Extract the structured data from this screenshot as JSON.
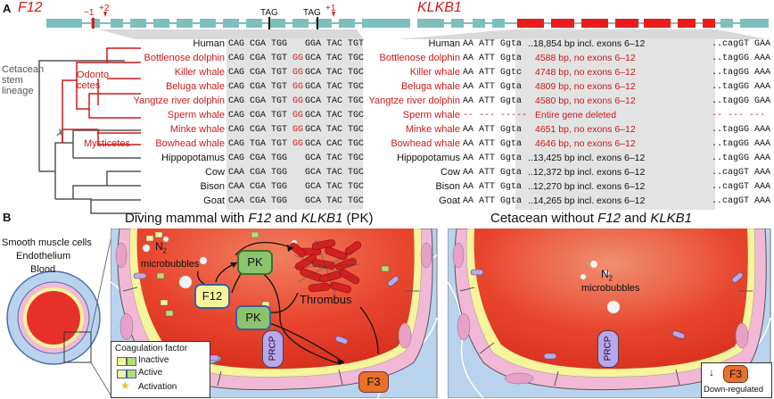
{
  "panelA": {
    "letter": "A",
    "f12": {
      "title": "F12",
      "markers": {
        "m1": "−1",
        "p2": "+2",
        "tag1": "TAG",
        "tag2": "TAG",
        "p1": "+1"
      },
      "lineage_label": "Cetacean\nstem\nlineage",
      "odontocetes_label": "Odonto\ncetes",
      "mysticetes_label": "Mysticetes",
      "species": [
        {
          "name": "Human",
          "red": false,
          "seq_a": "CAG CGA TGG",
          "gg": "",
          "seq_b": "GGA TAC TGT"
        },
        {
          "name": "Bottlenose dolphin",
          "red": true,
          "seq_a": "CAG CGA TGT",
          "gg": "GG",
          "seq_b": "GCA TAC TGC"
        },
        {
          "name": "Killer whale",
          "red": true,
          "seq_a": "CAG CGA TGT",
          "gg": "GG",
          "seq_b": "GCA TAC TGC"
        },
        {
          "name": "Beluga whale",
          "red": true,
          "seq_a": "CAG CGA TGT",
          "gg": "GG",
          "seq_b": "GCA TAC TGC"
        },
        {
          "name": "Yangtze river dolphin",
          "red": true,
          "seq_a": "CAG CGA TGT",
          "gg": "GG",
          "seq_b": "GCA TAC TGC"
        },
        {
          "name": "Sperm whale",
          "red": true,
          "seq_a": "CAG CGA TGT",
          "gg": "GG",
          "seq_b": "GCA TAC TGC"
        },
        {
          "name": "Minke whale",
          "red": true,
          "seq_a": "CAG CGA TGT",
          "gg": "GG",
          "seq_b": "GCA TAC TGC"
        },
        {
          "name": "Bowhead whale",
          "red": true,
          "seq_a": "CAG TGA TGT",
          "gg": "GG",
          "seq_b": "GCA CAC TGC"
        },
        {
          "name": "Hippopotamus",
          "red": false,
          "seq_a": "CAG CGA TGG",
          "gg": "",
          "seq_b": "GCA TAC TGC"
        },
        {
          "name": "Cow",
          "red": false,
          "seq_a": "CAA CGA TGG",
          "gg": "",
          "seq_b": "GCA TAC TGC"
        },
        {
          "name": "Bison",
          "red": false,
          "seq_a": "CAA CGA TGG",
          "gg": "",
          "seq_b": "GCA TAC TGC"
        },
        {
          "name": "Goat",
          "red": false,
          "seq_a": "CAA CGA TGG",
          "gg": "",
          "seq_b": "GCA TAC TGC"
        }
      ]
    },
    "klkb1": {
      "title": "KLKB1",
      "rows": [
        {
          "name": "Human",
          "red": false,
          "left": "AA ATT Ggta",
          "mid": "..18,854 bp incl. exons 6–12",
          "right": "..cagGT GAA"
        },
        {
          "name": "Bottlenose dolphin",
          "red": true,
          "left": "AA ATT Ggta",
          "mid": "4588 bp, no exons 6–12",
          "right": "..tagGG AAA"
        },
        {
          "name": "Killer whale",
          "red": true,
          "left": "AA ATT Ggtc",
          "mid": "4748 bp, no exons 6–12",
          "right": "..tagGG AAA"
        },
        {
          "name": "Beluga whale",
          "red": true,
          "left": "AA ATT Ggta",
          "mid": "4809 bp, no exons 6–12",
          "right": "..tagGG AAA"
        },
        {
          "name": "Yangtze river dolphin",
          "red": true,
          "left": "AA ATT Ggta",
          "mid": "4580 bp, no exons 6–12",
          "right": "..tagGG GAA"
        },
        {
          "name": "Sperm whale",
          "red": true,
          "left": "-- --- -----",
          "mid": "Entire gene deleted",
          "right": "-- --- ---"
        },
        {
          "name": "Minke whale",
          "red": true,
          "left": "AA ATT Ggta",
          "mid": "4651 bp, no exons 6–12",
          "right": "..tagGG AAA"
        },
        {
          "name": "Bowhead whale",
          "red": true,
          "left": "AA ATT Ggta",
          "mid": "4646 bp, no exons 6–12",
          "right": "..tagGG AAA"
        },
        {
          "name": "Hippopotamus",
          "red": false,
          "left": "AA ATT Ggta",
          "mid": "..13,425 bp incl. exons 6–12",
          "right": "..tagGG AAA"
        },
        {
          "name": "Cow",
          "red": false,
          "left": "AA ATT Ggta",
          "mid": "..12,372 bp incl. exons 6–12",
          "right": "..cagGT AAA"
        },
        {
          "name": "Bison",
          "red": false,
          "left": "AA ATT Ggta",
          "mid": "..12,270 bp incl. exons 6–12",
          "right": "..cagGT AAA"
        },
        {
          "name": "Goat",
          "red": false,
          "left": "AA ATT Ggta",
          "mid": "..14,265 bp incl. exons 6–12",
          "right": "..cagGT AAA"
        }
      ]
    }
  },
  "panelB": {
    "letter": "B",
    "title_left_pre": "Diving mammal with ",
    "title_left_g1": "F12",
    "title_left_mid": " and ",
    "title_left_g2": "KLKB1",
    "title_left_post": " (PK)",
    "title_right_pre": "Cetacean without ",
    "title_right_g1": "F12",
    "title_right_mid": " and ",
    "title_right_g2": "KLKB1",
    "vessel_labels": {
      "smooth": "Smooth muscle cells",
      "endo": "Endothelium",
      "blood": "Blood"
    },
    "n2_left": "N",
    "n2_sub": "2",
    "micro_left": "microbubbles",
    "micro_right": "microbubbles",
    "nodes": {
      "pk_top": "PK",
      "f12": "F12",
      "pk_mid": "PK",
      "prcp": "PRCP",
      "f3": "F3",
      "thrombus": "Thrombus",
      "prcp_right": "PRCP",
      "f3_right": "F3",
      "down": "Down-regulated",
      "down_arrow": "↓"
    },
    "legend": {
      "title": "Coagulation factor",
      "inactive": "Inactive",
      "active": "Active",
      "activation": "Activation"
    },
    "colors": {
      "red": "#e8302a",
      "teal": "#7fbfbd",
      "pink": "#f2b8d6",
      "purple": "#b9a6ee",
      "blue": "#b9d3ee",
      "yellow": "#f7f59c",
      "green": "#8bc46d"
    }
  }
}
